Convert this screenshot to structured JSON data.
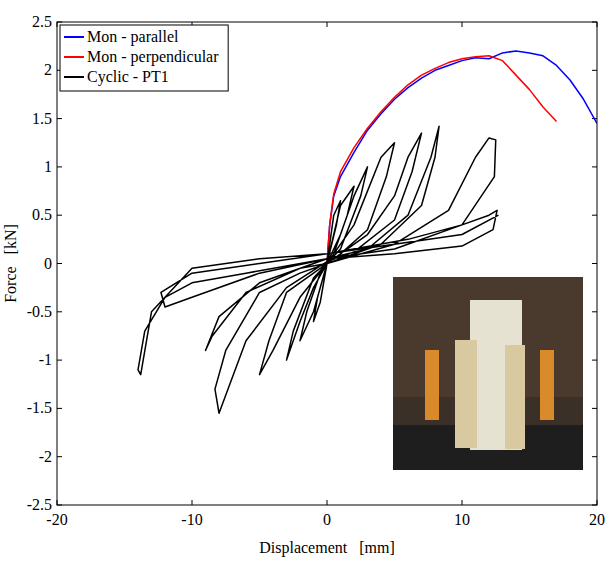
{
  "chart_data": {
    "type": "line",
    "x_label": "Displacement   [mm]",
    "y_label": "Force   [kN]",
    "xlim": [
      -20,
      20
    ],
    "xticks": [
      -20,
      -10,
      0,
      10,
      20
    ],
    "ylim": [
      -2.5,
      2.5
    ],
    "yticks": [
      -2.5,
      -2,
      -1.5,
      -1,
      -0.5,
      0,
      0.5,
      1,
      1.5,
      2,
      2.5
    ],
    "grid": false,
    "legend": "upper left",
    "series": [
      {
        "name": "Mon - parallel",
        "color": "#0000ff",
        "x": [
          0,
          0.2,
          0.5,
          1,
          2,
          3,
          4,
          5,
          6,
          7,
          8,
          9,
          10,
          11,
          12,
          13,
          14,
          15,
          16,
          17,
          18,
          19,
          20
        ],
        "values": [
          0,
          0.4,
          0.7,
          0.9,
          1.15,
          1.38,
          1.55,
          1.7,
          1.82,
          1.92,
          2.0,
          2.05,
          2.1,
          2.13,
          2.12,
          2.18,
          2.2,
          2.18,
          2.15,
          2.05,
          1.9,
          1.7,
          1.45
        ]
      },
      {
        "name": "Mon - perpendicular",
        "color": "#ff0000",
        "x": [
          0,
          0.2,
          0.5,
          1,
          2,
          3,
          4,
          5,
          6,
          7,
          8,
          9,
          10,
          11,
          12,
          13,
          14,
          15,
          16,
          17
        ],
        "values": [
          0,
          0.4,
          0.72,
          0.95,
          1.2,
          1.4,
          1.57,
          1.72,
          1.85,
          1.95,
          2.02,
          2.08,
          2.12,
          2.14,
          2.15,
          2.1,
          1.95,
          1.8,
          1.62,
          1.47
        ]
      },
      {
        "name": "Cyclic - PT1",
        "color": "#000000",
        "x": [
          0,
          0.5,
          1,
          0.7,
          0,
          -0.5,
          -1,
          -0.7,
          0,
          1,
          2,
          1.5,
          0.5,
          0,
          -1,
          -2,
          -1.5,
          -0.5,
          0,
          1,
          2,
          3,
          2.5,
          1,
          0,
          -1,
          -2,
          -3,
          -2.5,
          -1,
          0,
          2,
          4,
          5,
          4.4,
          3,
          1,
          0,
          -2,
          -4,
          -5,
          -4.3,
          -3,
          -1,
          0,
          3,
          5,
          6,
          7,
          6.3,
          5,
          2,
          0,
          -3,
          -6,
          -8,
          -8.3,
          -7.5,
          -5,
          -2,
          0,
          4,
          7,
          8,
          8.3,
          7.7,
          6,
          3,
          0,
          -5,
          -8,
          -9,
          -8.5,
          -6,
          -2,
          0,
          5,
          9,
          11,
          12,
          12.5,
          12.4,
          10,
          5,
          0,
          -5,
          -10,
          -12,
          -12.3,
          -10,
          -5,
          0,
          6,
          10,
          12,
          12.6,
          12.3,
          10,
          5,
          0,
          -6,
          -10,
          -12,
          -13.5,
          -14,
          -13.8,
          -13,
          -10,
          -5,
          0,
          5,
          10,
          12.7
        ],
        "values": [
          0,
          0.5,
          0.65,
          0.4,
          0,
          -0.4,
          -0.6,
          -0.35,
          0,
          0.6,
          0.8,
          0.5,
          0.1,
          0,
          -0.5,
          -0.8,
          -0.5,
          -0.1,
          0,
          0.3,
          0.7,
          1.0,
          0.7,
          0.15,
          0,
          -0.25,
          -0.6,
          -1.0,
          -0.7,
          -0.15,
          0,
          0.4,
          1.1,
          1.25,
          0.9,
          0.35,
          0.1,
          0,
          -0.35,
          -0.9,
          -1.15,
          -0.8,
          -0.3,
          -0.1,
          0,
          0.3,
          0.7,
          1.1,
          1.35,
          0.95,
          0.45,
          0.12,
          0.02,
          -0.25,
          -0.8,
          -1.55,
          -1.3,
          -0.9,
          -0.3,
          -0.1,
          0,
          0.2,
          0.6,
          1.1,
          1.42,
          1.1,
          0.5,
          0.15,
          0.05,
          -0.2,
          -0.55,
          -0.9,
          -0.75,
          -0.3,
          -0.05,
          0,
          0.2,
          0.55,
          1.1,
          1.3,
          1.28,
          0.9,
          0.4,
          0.15,
          0.05,
          -0.1,
          -0.35,
          -0.45,
          -0.3,
          -0.1,
          0,
          0.1,
          0.25,
          0.4,
          0.5,
          0.55,
          0.35,
          0.18,
          0.1,
          0.05,
          -0.1,
          -0.2,
          -0.35,
          -0.7,
          -1.1,
          -1.15,
          -0.5,
          -0.05,
          0.05,
          0.1,
          0.2,
          0.3,
          0.5
        ]
      }
    ]
  }
}
